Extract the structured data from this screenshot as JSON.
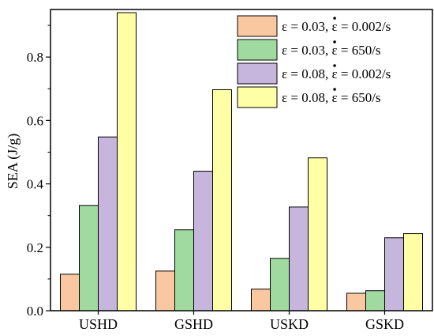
{
  "chart_data": {
    "type": "bar",
    "title": "",
    "xlabel": "",
    "ylabel": "SEA (J/g)",
    "ylim": [
      0,
      0.95
    ],
    "yticks": [
      0.0,
      0.2,
      0.4,
      0.6,
      0.8
    ],
    "ytick_labels": [
      "0.0",
      "0.2",
      "0.4",
      "0.6",
      "0.8"
    ],
    "grid": false,
    "legend_position": "top-right",
    "categories": [
      "USHD",
      "GSHD",
      "USKD",
      "GSKD"
    ],
    "series": [
      {
        "name": "ε = 0.03, ε̇ = 0.002/s",
        "legend_prefix": "ε = 0.03, ",
        "legend_dotted": "ε",
        "legend_suffix": " = 0.002/s",
        "color": "#FAC8A0",
        "values": [
          0.115,
          0.125,
          0.068,
          0.055
        ]
      },
      {
        "name": "ε = 0.03, ε̇ = 650/s",
        "legend_prefix": "ε = 0.03, ",
        "legend_dotted": "ε",
        "legend_suffix": " = 650/s",
        "color": "#A1DAA1",
        "values": [
          0.332,
          0.255,
          0.165,
          0.063
        ]
      },
      {
        "name": "ε = 0.08, ε̇ = 0.002/s",
        "legend_prefix": "ε = 0.08, ",
        "legend_dotted": "ε",
        "legend_suffix": " = 0.002/s",
        "color": "#C6B5DC",
        "values": [
          0.548,
          0.44,
          0.327,
          0.23
        ]
      },
      {
        "name": "ε = 0.08, ε̇ = 650/s",
        "legend_prefix": "ε = 0.08, ",
        "legend_dotted": "ε",
        "legend_suffix": " = 650/s",
        "color": "#FFFFA5",
        "values": [
          0.94,
          0.697,
          0.482,
          0.243
        ]
      }
    ]
  }
}
